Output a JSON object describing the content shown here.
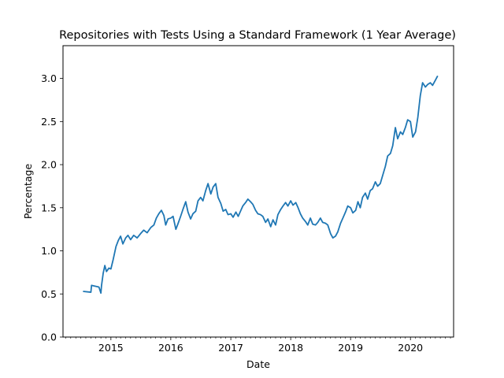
{
  "chart_data": {
    "type": "line",
    "title": "Repositories with Tests Using a Standard Framework (1 Year Average)",
    "xlabel": "Date",
    "ylabel": "Percentage",
    "xlim": [
      "2014-03-15",
      "2020-09-20"
    ],
    "ylim": [
      0,
      3.38
    ],
    "x_ticks": [
      {
        "date": "2015-01-01",
        "label": "2015"
      },
      {
        "date": "2016-01-01",
        "label": "2016"
      },
      {
        "date": "2017-01-01",
        "label": "2017"
      },
      {
        "date": "2018-01-01",
        "label": "2018"
      },
      {
        "date": "2019-01-01",
        "label": "2019"
      },
      {
        "date": "2020-01-01",
        "label": "2020"
      }
    ],
    "y_ticks": [
      {
        "value": 0.0,
        "label": "0.0"
      },
      {
        "value": 0.5,
        "label": "0.5"
      },
      {
        "value": 1.0,
        "label": "1.0"
      },
      {
        "value": 1.5,
        "label": "1.5"
      },
      {
        "value": 2.0,
        "label": "2.0"
      },
      {
        "value": 2.5,
        "label": "2.5"
      },
      {
        "value": 3.0,
        "label": "3.0"
      }
    ],
    "minor_x_ticks": "monthly",
    "grid": false,
    "legend": "none",
    "series": [
      {
        "color": "#1f77b4",
        "points": [
          [
            "2014-07-15",
            0.53
          ],
          [
            "2014-09-01",
            0.52
          ],
          [
            "2014-09-05",
            0.6
          ],
          [
            "2014-10-20",
            0.58
          ],
          [
            "2014-11-01",
            0.51
          ],
          [
            "2014-11-05",
            0.6
          ],
          [
            "2014-11-15",
            0.74
          ],
          [
            "2014-11-25",
            0.83
          ],
          [
            "2014-12-05",
            0.76
          ],
          [
            "2014-12-20",
            0.8
          ],
          [
            "2015-01-01",
            0.79
          ],
          [
            "2015-01-15",
            0.9
          ],
          [
            "2015-02-01",
            1.05
          ],
          [
            "2015-02-15",
            1.12
          ],
          [
            "2015-03-01",
            1.17
          ],
          [
            "2015-03-15",
            1.08
          ],
          [
            "2015-04-01",
            1.15
          ],
          [
            "2015-04-15",
            1.18
          ],
          [
            "2015-05-01",
            1.13
          ],
          [
            "2015-05-20",
            1.18
          ],
          [
            "2015-06-10",
            1.15
          ],
          [
            "2015-07-01",
            1.2
          ],
          [
            "2015-07-20",
            1.24
          ],
          [
            "2015-08-10",
            1.21
          ],
          [
            "2015-09-01",
            1.27
          ],
          [
            "2015-09-20",
            1.3
          ],
          [
            "2015-10-05",
            1.38
          ],
          [
            "2015-10-20",
            1.43
          ],
          [
            "2015-11-05",
            1.47
          ],
          [
            "2015-11-20",
            1.41
          ],
          [
            "2015-12-01",
            1.3
          ],
          [
            "2015-12-15",
            1.37
          ],
          [
            "2016-01-01",
            1.38
          ],
          [
            "2016-01-15",
            1.4
          ],
          [
            "2016-02-01",
            1.25
          ],
          [
            "2016-02-15",
            1.32
          ],
          [
            "2016-03-01",
            1.4
          ],
          [
            "2016-03-15",
            1.48
          ],
          [
            "2016-04-01",
            1.57
          ],
          [
            "2016-04-15",
            1.45
          ],
          [
            "2016-05-01",
            1.37
          ],
          [
            "2016-05-15",
            1.43
          ],
          [
            "2016-06-01",
            1.46
          ],
          [
            "2016-06-15",
            1.58
          ],
          [
            "2016-07-01",
            1.62
          ],
          [
            "2016-07-15",
            1.58
          ],
          [
            "2016-08-01",
            1.7
          ],
          [
            "2016-08-15",
            1.78
          ],
          [
            "2016-09-01",
            1.66
          ],
          [
            "2016-09-15",
            1.74
          ],
          [
            "2016-10-01",
            1.78
          ],
          [
            "2016-10-15",
            1.62
          ],
          [
            "2016-11-01",
            1.55
          ],
          [
            "2016-11-15",
            1.46
          ],
          [
            "2016-12-01",
            1.48
          ],
          [
            "2016-12-15",
            1.42
          ],
          [
            "2017-01-01",
            1.43
          ],
          [
            "2017-01-15",
            1.39
          ],
          [
            "2017-02-01",
            1.45
          ],
          [
            "2017-02-15",
            1.4
          ],
          [
            "2017-03-01",
            1.46
          ],
          [
            "2017-03-15",
            1.52
          ],
          [
            "2017-04-01",
            1.56
          ],
          [
            "2017-04-15",
            1.6
          ],
          [
            "2017-05-01",
            1.57
          ],
          [
            "2017-05-15",
            1.54
          ],
          [
            "2017-06-01",
            1.47
          ],
          [
            "2017-06-15",
            1.43
          ],
          [
            "2017-07-01",
            1.42
          ],
          [
            "2017-07-15",
            1.4
          ],
          [
            "2017-08-01",
            1.33
          ],
          [
            "2017-08-15",
            1.37
          ],
          [
            "2017-09-01",
            1.28
          ],
          [
            "2017-09-15",
            1.36
          ],
          [
            "2017-10-01",
            1.3
          ],
          [
            "2017-10-15",
            1.42
          ],
          [
            "2017-11-01",
            1.48
          ],
          [
            "2017-11-15",
            1.52
          ],
          [
            "2017-12-01",
            1.56
          ],
          [
            "2017-12-15",
            1.52
          ],
          [
            "2018-01-01",
            1.58
          ],
          [
            "2018-01-15",
            1.53
          ],
          [
            "2018-02-01",
            1.56
          ],
          [
            "2018-02-15",
            1.5
          ],
          [
            "2018-03-01",
            1.43
          ],
          [
            "2018-03-15",
            1.38
          ],
          [
            "2018-04-01",
            1.34
          ],
          [
            "2018-04-15",
            1.3
          ],
          [
            "2018-05-01",
            1.38
          ],
          [
            "2018-05-15",
            1.31
          ],
          [
            "2018-06-01",
            1.3
          ],
          [
            "2018-06-15",
            1.33
          ],
          [
            "2018-07-01",
            1.38
          ],
          [
            "2018-07-15",
            1.33
          ],
          [
            "2018-08-01",
            1.32
          ],
          [
            "2018-08-15",
            1.3
          ],
          [
            "2018-09-01",
            1.2
          ],
          [
            "2018-09-15",
            1.15
          ],
          [
            "2018-10-01",
            1.17
          ],
          [
            "2018-10-15",
            1.22
          ],
          [
            "2018-11-01",
            1.32
          ],
          [
            "2018-11-15",
            1.38
          ],
          [
            "2018-12-01",
            1.45
          ],
          [
            "2018-12-15",
            1.52
          ],
          [
            "2019-01-01",
            1.5
          ],
          [
            "2019-01-15",
            1.44
          ],
          [
            "2019-02-01",
            1.47
          ],
          [
            "2019-02-15",
            1.57
          ],
          [
            "2019-03-01",
            1.5
          ],
          [
            "2019-03-15",
            1.62
          ],
          [
            "2019-04-01",
            1.67
          ],
          [
            "2019-04-15",
            1.6
          ],
          [
            "2019-05-01",
            1.7
          ],
          [
            "2019-05-15",
            1.72
          ],
          [
            "2019-06-01",
            1.8
          ],
          [
            "2019-06-15",
            1.75
          ],
          [
            "2019-07-01",
            1.78
          ],
          [
            "2019-07-15",
            1.87
          ],
          [
            "2019-08-01",
            1.98
          ],
          [
            "2019-08-15",
            2.1
          ],
          [
            "2019-09-01",
            2.13
          ],
          [
            "2019-09-15",
            2.22
          ],
          [
            "2019-10-01",
            2.43
          ],
          [
            "2019-10-15",
            2.3
          ],
          [
            "2019-11-01",
            2.38
          ],
          [
            "2019-11-15",
            2.35
          ],
          [
            "2019-12-01",
            2.43
          ],
          [
            "2019-12-15",
            2.52
          ],
          [
            "2020-01-01",
            2.5
          ],
          [
            "2020-01-15",
            2.32
          ],
          [
            "2020-02-01",
            2.38
          ],
          [
            "2020-02-15",
            2.55
          ],
          [
            "2020-03-01",
            2.8
          ],
          [
            "2020-03-15",
            2.95
          ],
          [
            "2020-04-01",
            2.9
          ],
          [
            "2020-04-15",
            2.93
          ],
          [
            "2020-05-01",
            2.95
          ],
          [
            "2020-05-15",
            2.92
          ],
          [
            "2020-06-01",
            2.98
          ],
          [
            "2020-06-15",
            3.03
          ]
        ]
      }
    ]
  }
}
